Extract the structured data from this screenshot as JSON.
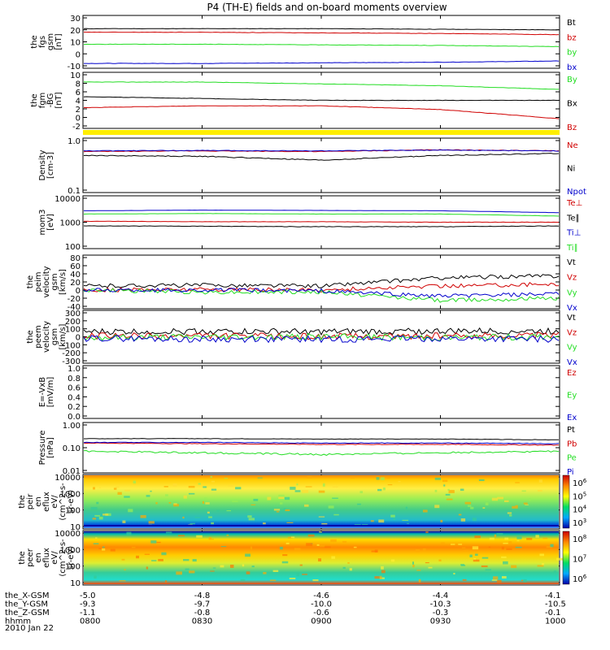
{
  "title": "P4 (TH-E) fields and on-board moments overview",
  "date": "2010 Jan 22",
  "colors": {
    "black": "#000000",
    "red": "#d00000",
    "green": "#22dd22",
    "blue": "#0000cc",
    "yellow": "#ffee00"
  },
  "ephemeris": {
    "rows": [
      {
        "label": "the_X-GSM",
        "values": [
          "-5.0",
          "-4.8",
          "-4.6",
          "-4.4",
          "-4.1"
        ]
      },
      {
        "label": "the_Y-GSM",
        "values": [
          "-9.3",
          "-9.7",
          "-10.0",
          "-10.3",
          "-10.5"
        ]
      },
      {
        "label": "the_Z-GSM",
        "values": [
          "-1.1",
          "-0.8",
          "-0.6",
          "-0.3",
          "-0.1"
        ]
      },
      {
        "label": "hhmm",
        "values": [
          "0800",
          "0830",
          "0900",
          "0930",
          "1000"
        ]
      }
    ]
  },
  "chart_data": [
    {
      "type": "line",
      "ylabel": [
        "the",
        "fgs",
        "gsm",
        "[nT]"
      ],
      "yticks": [
        "30",
        "20",
        "10",
        "0",
        "-10"
      ],
      "ylim": [
        -10,
        30
      ],
      "series": [
        {
          "name": "Bt",
          "color": "black",
          "values": [
            21,
            21,
            21,
            20.5,
            20
          ]
        },
        {
          "name": "bz",
          "color": "red",
          "values": [
            18,
            18,
            17.5,
            17,
            16
          ]
        },
        {
          "name": "by",
          "color": "green",
          "values": [
            8,
            8,
            7.5,
            7,
            6
          ]
        },
        {
          "name": "bx",
          "color": "blue",
          "values": [
            -8,
            -8,
            -7.5,
            -7,
            -6
          ]
        }
      ]
    },
    {
      "type": "line",
      "ylabel": [
        "the",
        "fgm",
        "-BG",
        "[nT]"
      ],
      "yticks": [
        "10",
        "8",
        "6",
        "4",
        "2",
        "0",
        "-2"
      ],
      "ylim": [
        -3,
        11
      ],
      "series": [
        {
          "name": "By",
          "color": "green",
          "values": [
            9,
            9,
            8.5,
            8,
            7
          ]
        },
        {
          "name": "Bx",
          "color": "black",
          "values": [
            5,
            4.5,
            4,
            4,
            4
          ]
        },
        {
          "name": "Bz",
          "color": "red",
          "values": [
            2,
            2.5,
            2.5,
            1.5,
            -1
          ]
        }
      ]
    },
    {
      "type": "line",
      "ylabel": [
        "Density",
        "[cm-3]"
      ],
      "yticks": [
        "1.0",
        "0.1"
      ],
      "ylim": [
        0.1,
        1.0
      ],
      "scale": "log",
      "series": [
        {
          "name": "Ne",
          "color": "red",
          "values": [
            0.6,
            0.62,
            0.6,
            0.65,
            0.62
          ]
        },
        {
          "name": "Ni",
          "color": "black",
          "values": [
            0.5,
            0.48,
            0.4,
            0.5,
            0.55
          ]
        },
        {
          "name": "Npot",
          "color": "blue",
          "values": [
            0.62,
            0.63,
            0.62,
            0.64,
            0.62
          ]
        }
      ]
    },
    {
      "type": "line",
      "ylabel": [
        "mom3",
        "[eV]"
      ],
      "yticks": [
        "10000",
        "1000",
        "100"
      ],
      "ylim": [
        100,
        10000
      ],
      "scale": "log",
      "series": [
        {
          "name": "Te⊥",
          "color": "red",
          "values": [
            1100,
            1050,
            1050,
            1000,
            1000
          ]
        },
        {
          "name": "Te∥",
          "color": "black",
          "values": [
            700,
            680,
            650,
            650,
            700
          ]
        },
        {
          "name": "Ti⊥",
          "color": "blue",
          "values": [
            3000,
            3200,
            3100,
            3000,
            2500
          ]
        },
        {
          "name": "Ti∥",
          "color": "green",
          "values": [
            2200,
            2300,
            2200,
            2200,
            1800
          ]
        }
      ]
    },
    {
      "type": "line",
      "ylabel": [
        "the",
        "peim",
        "velocity",
        "gsm",
        "[km/s]"
      ],
      "yticks": [
        "80",
        "60",
        "40",
        "20",
        "0",
        "-20",
        "-40"
      ],
      "ylim": [
        -40,
        80
      ],
      "series": [
        {
          "name": "Vt",
          "color": "black",
          "values": [
            10,
            12,
            10,
            30,
            35
          ]
        },
        {
          "name": "Vz",
          "color": "red",
          "values": [
            0,
            2,
            0,
            10,
            15
          ]
        },
        {
          "name": "Vy",
          "color": "green",
          "values": [
            0,
            -5,
            -5,
            -25,
            -20
          ]
        },
        {
          "name": "Vx",
          "color": "blue",
          "values": [
            0,
            0,
            -2,
            -15,
            -10
          ]
        }
      ]
    },
    {
      "type": "line",
      "ylabel": [
        "the",
        "peem",
        "velocity",
        "gsm",
        "[km/s]"
      ],
      "yticks": [
        "300",
        "200",
        "100",
        "0",
        "-100",
        "-200",
        "-300"
      ],
      "ylim": [
        -300,
        300
      ],
      "series": [
        {
          "name": "Vt",
          "color": "black",
          "values": [
            60,
            70,
            60,
            70,
            70
          ]
        },
        {
          "name": "Vz",
          "color": "red",
          "values": [
            10,
            10,
            5,
            10,
            20
          ]
        },
        {
          "name": "Vy",
          "color": "green",
          "values": [
            -10,
            0,
            0,
            -10,
            0
          ]
        },
        {
          "name": "Vx",
          "color": "blue",
          "values": [
            -20,
            -30,
            -30,
            -20,
            -30
          ]
        }
      ]
    },
    {
      "type": "line",
      "ylabel": [
        "E=-VxB",
        "[mV/m]"
      ],
      "yticks": [
        "1.0",
        "0.8",
        "0.6",
        "0.4",
        "0.2",
        "0.0"
      ],
      "ylim": [
        0,
        1
      ],
      "series": [
        {
          "name": "Ez",
          "color": "red",
          "values": []
        },
        {
          "name": "Ey",
          "color": "green",
          "values": []
        },
        {
          "name": "Ex",
          "color": "blue",
          "values": []
        }
      ]
    },
    {
      "type": "line",
      "ylabel": [
        "Pressure",
        "[nPa]"
      ],
      "yticks": [
        "1.00",
        "0.10",
        "0.01"
      ],
      "ylim": [
        0.01,
        1.0
      ],
      "scale": "log",
      "series": [
        {
          "name": "Pt",
          "color": "black",
          "values": [
            0.25,
            0.25,
            0.24,
            0.24,
            0.22
          ]
        },
        {
          "name": "Pb",
          "color": "red",
          "values": [
            0.16,
            0.15,
            0.14,
            0.14,
            0.13
          ]
        },
        {
          "name": "Pe",
          "color": "green",
          "values": [
            0.07,
            0.06,
            0.05,
            0.06,
            0.07
          ]
        },
        {
          "name": "Pi",
          "color": "blue",
          "values": [
            0.17,
            0.17,
            0.16,
            0.16,
            0.15
          ]
        }
      ]
    },
    {
      "type": "heatmap",
      "ylabel": [
        "the",
        "peir",
        "en",
        "eflux",
        "eV/",
        "(cm^2-s-",
        "sr-eV)"
      ],
      "yticks": [
        "10000",
        "1000",
        "100",
        "10"
      ],
      "ylim": [
        5,
        20000
      ],
      "colorbar_ticks": [
        "10^6",
        "10^5",
        "10^4",
        "10^3"
      ]
    },
    {
      "type": "heatmap",
      "ylabel": [
        "the",
        "peer",
        "en",
        "eflux",
        "eV/",
        "(cm^2-s-",
        "sr-eV)"
      ],
      "yticks": [
        "10000",
        "1000",
        "100",
        "10"
      ],
      "ylim": [
        5,
        20000
      ],
      "colorbar_ticks": [
        "10^8",
        "10^7",
        "10^6"
      ]
    }
  ]
}
